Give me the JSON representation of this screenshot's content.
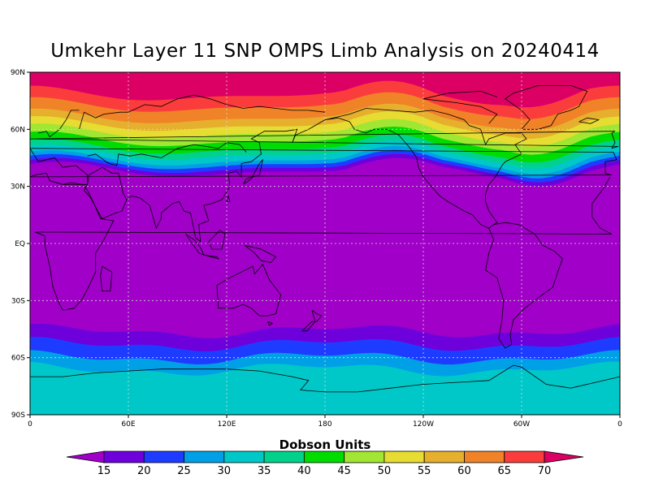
{
  "title": "Umkehr Layer 11 SNP OMPS Limb Analysis on 20240414",
  "colorbar": {
    "title": "Dobson Units",
    "levels": [
      "15",
      "20",
      "25",
      "30",
      "35",
      "40",
      "45",
      "50",
      "55",
      "60",
      "65",
      "70"
    ],
    "colors": [
      "#a000c8",
      "#6e00dc",
      "#1e3cff",
      "#00a0e6",
      "#00c8c8",
      "#00d28c",
      "#00dc00",
      "#a0e632",
      "#e6dc32",
      "#e6af2d",
      "#f08228",
      "#fa3c3c",
      "#dc0064"
    ]
  },
  "axes": {
    "x_ticks": [
      "0",
      "60E",
      "120E",
      "180",
      "120W",
      "60W",
      "0"
    ],
    "y_ticks": [
      "90N",
      "60N",
      "30N",
      "EQ",
      "30S",
      "60S",
      "90S"
    ]
  },
  "chart_data": {
    "type": "heatmap",
    "title": "Umkehr Layer 11 SNP OMPS Limb Analysis on 20240414",
    "units": "Dobson Units",
    "x_range": [
      0,
      360
    ],
    "y_range": [
      -90,
      90
    ],
    "grid": true,
    "band_boundaries_north": [
      {
        "value": 15,
        "lat_min": 30,
        "lat_max": 41
      },
      {
        "value": 20,
        "lat_min": 32,
        "lat_max": 43
      },
      {
        "value": 25,
        "lat_min": 33,
        "lat_max": 45
      },
      {
        "value": 30,
        "lat_min": 35,
        "lat_max": 47
      },
      {
        "value": 35,
        "lat_min": 37,
        "lat_max": 49
      },
      {
        "value": 40,
        "lat_min": 40,
        "lat_max": 52
      },
      {
        "value": 45,
        "lat_min": 45,
        "lat_max": 56
      },
      {
        "value": 50,
        "lat_min": 48,
        "lat_max": 59
      },
      {
        "value": 55,
        "lat_min": 52,
        "lat_max": 62
      },
      {
        "value": 60,
        "lat_min": 56,
        "lat_max": 66
      },
      {
        "value": 65,
        "lat_min": 62,
        "lat_max": 72
      },
      {
        "value": 70,
        "lat_min": 68,
        "lat_max": 78
      }
    ],
    "band_boundaries_south": [
      {
        "value": 15,
        "lat_min": -55,
        "lat_max": -43
      },
      {
        "value": 20,
        "lat_min": -60,
        "lat_max": -50
      },
      {
        "value": 25,
        "lat_min": -67,
        "lat_max": -58
      },
      {
        "value": 30,
        "lat_min": -72,
        "lat_max": -62
      }
    ]
  }
}
